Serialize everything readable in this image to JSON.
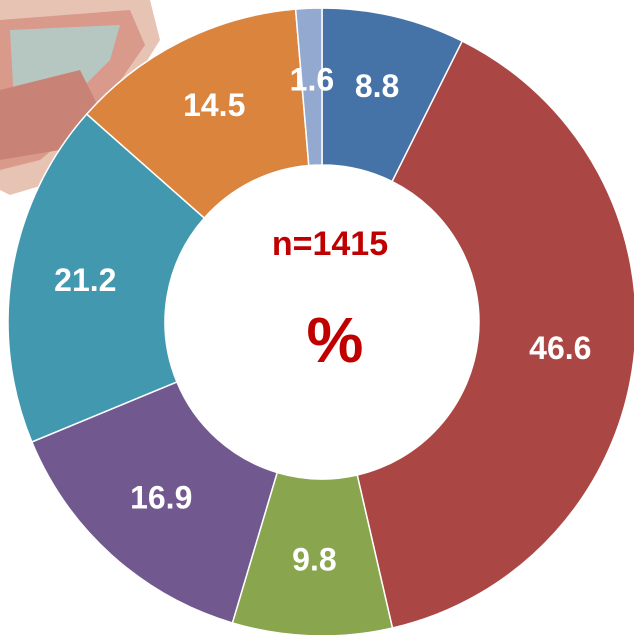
{
  "chart_data": {
    "type": "donut",
    "values": [
      8.8,
      46.6,
      9.8,
      16.9,
      21.2,
      14.5,
      1.6
    ],
    "colors": [
      "#4572a7",
      "#aa4643",
      "#89a54e",
      "#71588f",
      "#4198af",
      "#db843d",
      "#93a9cf"
    ],
    "center_label": "n=1415",
    "center_unit": "%"
  }
}
